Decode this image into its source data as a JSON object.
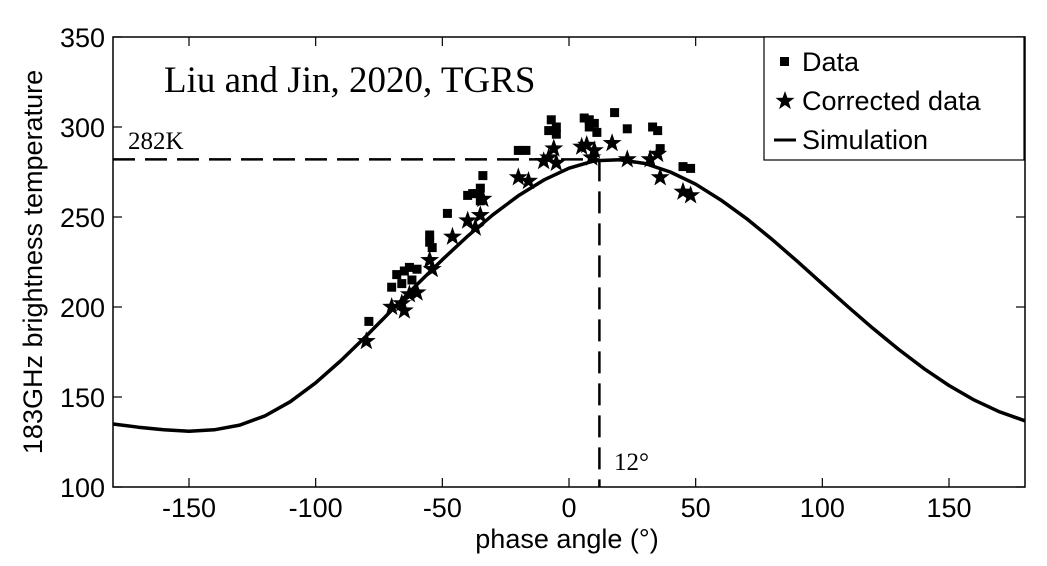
{
  "chart_data": {
    "type": "scatter",
    "xlabel": "phase angle (°)",
    "ylabel": "183GHz brightness temperature",
    "xlim": [
      -180,
      180
    ],
    "ylim": [
      100,
      350
    ],
    "xticks": [
      -150,
      -100,
      -50,
      0,
      50,
      100,
      150
    ],
    "yticks": [
      100,
      150,
      200,
      250,
      300,
      350
    ],
    "xtick_labels": [
      "-150",
      "-100",
      "-50",
      "0",
      "50",
      "100",
      "150"
    ],
    "ytick_labels": [
      "100",
      "150",
      "200",
      "250",
      "300",
      "350"
    ],
    "grid": false,
    "legend_position": "top-right",
    "legend": [
      "Data",
      "Corrected data",
      "Simulation"
    ],
    "annotations": [
      {
        "text": "Liu and Jin, 2020, TGRS"
      },
      {
        "text": "282K"
      },
      {
        "text": "12°"
      }
    ],
    "reference_lines": {
      "horizontal_y": 282,
      "vertical_x": 12
    },
    "series": [
      {
        "name": "Data",
        "marker": "square",
        "points": [
          [
            -79,
            192
          ],
          [
            -70,
            211
          ],
          [
            -68,
            218
          ],
          [
            -66,
            213
          ],
          [
            -65,
            220
          ],
          [
            -63,
            222
          ],
          [
            -62,
            215
          ],
          [
            -60,
            221
          ],
          [
            -55,
            240
          ],
          [
            -55,
            236
          ],
          [
            -54,
            233
          ],
          [
            -48,
            252
          ],
          [
            -40,
            262
          ],
          [
            -38,
            263
          ],
          [
            -36,
            263
          ],
          [
            -35,
            266
          ],
          [
            -35,
            259
          ],
          [
            -34,
            273
          ],
          [
            -20,
            287
          ],
          [
            -17,
            287
          ],
          [
            -8,
            298
          ],
          [
            -7,
            304
          ],
          [
            -5,
            296
          ],
          [
            -5,
            300
          ],
          [
            6,
            305
          ],
          [
            8,
            304
          ],
          [
            8,
            300
          ],
          [
            10,
            302
          ],
          [
            11,
            297
          ],
          [
            18,
            308
          ],
          [
            23,
            299
          ],
          [
            33,
            300
          ],
          [
            35,
            298
          ],
          [
            36,
            288
          ],
          [
            45,
            278
          ],
          [
            48,
            277
          ]
        ]
      },
      {
        "name": "Corrected data",
        "marker": "star",
        "points": [
          [
            -80,
            181
          ],
          [
            -70,
            200
          ],
          [
            -66,
            202
          ],
          [
            -65,
            198
          ],
          [
            -63,
            207
          ],
          [
            -60,
            208
          ],
          [
            -55,
            226
          ],
          [
            -54,
            221
          ],
          [
            -46,
            239
          ],
          [
            -40,
            248
          ],
          [
            -37,
            244
          ],
          [
            -35,
            251
          ],
          [
            -34,
            260
          ],
          [
            -20,
            272
          ],
          [
            -16,
            270
          ],
          [
            -10,
            281
          ],
          [
            -8,
            283
          ],
          [
            -6,
            288
          ],
          [
            -5,
            280
          ],
          [
            5,
            289
          ],
          [
            7,
            290
          ],
          [
            9,
            283
          ],
          [
            10,
            287
          ],
          [
            17,
            291
          ],
          [
            23,
            282
          ],
          [
            32,
            282
          ],
          [
            35,
            285
          ],
          [
            36,
            272
          ],
          [
            45,
            264
          ],
          [
            48,
            262
          ]
        ]
      },
      {
        "name": "Simulation",
        "style": "line",
        "x": [
          -180,
          -170,
          -160,
          -150,
          -140,
          -130,
          -120,
          -110,
          -100,
          -90,
          -80,
          -70,
          -60,
          -50,
          -40,
          -30,
          -20,
          -10,
          0,
          10,
          20,
          30,
          40,
          50,
          60,
          70,
          80,
          90,
          100,
          110,
          120,
          130,
          140,
          150,
          160,
          170,
          180
        ],
        "y": [
          135.0,
          133.2,
          131.8,
          131.0,
          131.8,
          134.4,
          139.5,
          147.4,
          157.9,
          170.3,
          183.9,
          198.2,
          212.5,
          226.3,
          239.4,
          251.3,
          261.8,
          270.5,
          277.1,
          281.2,
          281.8,
          279.7,
          275.0,
          268.2,
          259.4,
          249.2,
          237.7,
          225.5,
          212.9,
          200.3,
          188.1,
          176.6,
          165.9,
          156.4,
          148.3,
          141.7,
          136.8
        ]
      }
    ]
  }
}
